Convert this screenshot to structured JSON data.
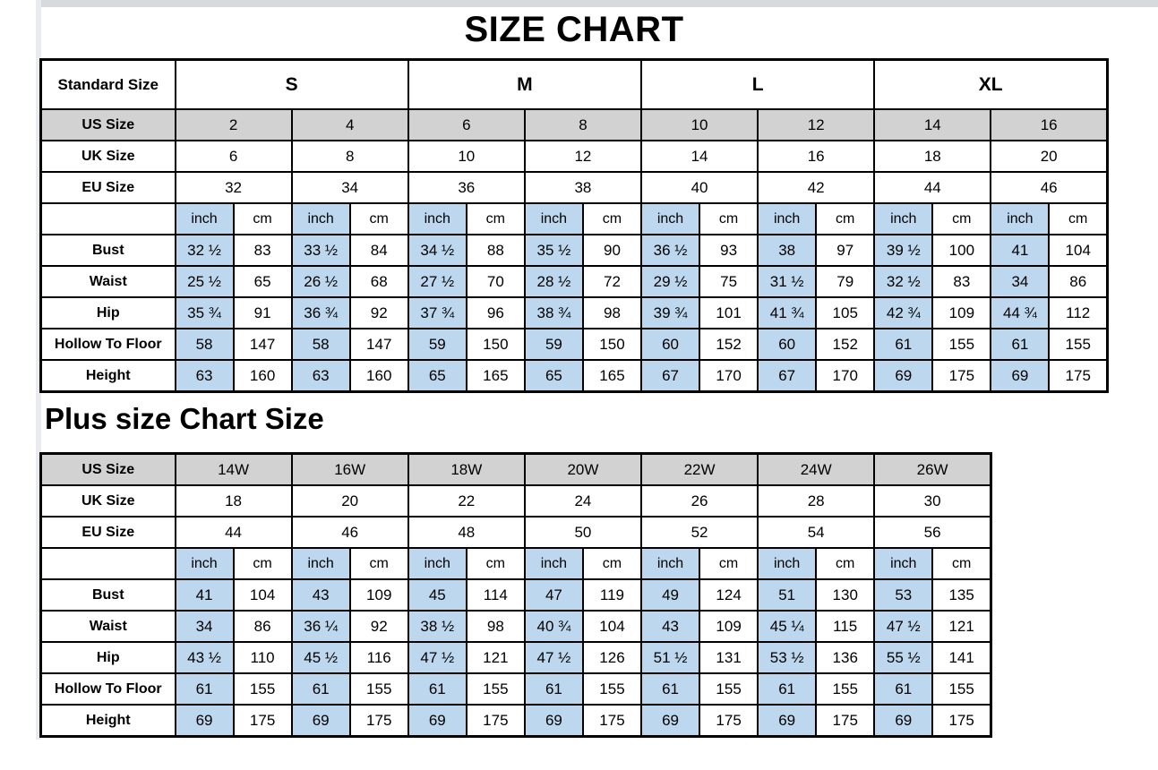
{
  "colors": {
    "inch_highlight_blue": "#bdd7ee",
    "size_row_gray": "#d2d2d2",
    "border_black": "#000000",
    "page_background": "#ffffff"
  },
  "chart_data": [
    {
      "type": "table",
      "title": "SIZE CHART",
      "corner_label": "Standard Size",
      "size_groups": [
        "S",
        "M",
        "L",
        "XL"
      ],
      "size_rows": [
        {
          "label": "US Size",
          "gray": true,
          "values": [
            "2",
            "4",
            "6",
            "8",
            "10",
            "12",
            "14",
            "16"
          ]
        },
        {
          "label": "UK Size",
          "gray": false,
          "values": [
            "6",
            "8",
            "10",
            "12",
            "14",
            "16",
            "18",
            "20"
          ]
        },
        {
          "label": "EU Size",
          "gray": false,
          "values": [
            "32",
            "34",
            "36",
            "38",
            "40",
            "42",
            "44",
            "46"
          ]
        }
      ],
      "units": [
        "inch",
        "cm"
      ],
      "measure_rows": [
        {
          "label": "Bust",
          "cells": [
            "32 ½",
            "83",
            "33 ½",
            "84",
            "34 ½",
            "88",
            "35 ½",
            "90",
            "36 ½",
            "93",
            "38",
            "97",
            "39 ½",
            "100",
            "41",
            "104"
          ]
        },
        {
          "label": "Waist",
          "cells": [
            "25 ½",
            "65",
            "26 ½",
            "68",
            "27 ½",
            "70",
            "28 ½",
            "72",
            "29 ½",
            "75",
            "31 ½",
            "79",
            "32 ½",
            "83",
            "34",
            "86"
          ]
        },
        {
          "label": "Hip",
          "cells": [
            "35 ¾",
            "91",
            "36 ¾",
            "92",
            "37 ¾",
            "96",
            "38 ¾",
            "98",
            "39 ¾",
            "101",
            "41 ¾",
            "105",
            "42 ¾",
            "109",
            "44 ¾",
            "112"
          ]
        },
        {
          "label": "Hollow To Floor",
          "cells": [
            "58",
            "147",
            "58",
            "147",
            "59",
            "150",
            "59",
            "150",
            "60",
            "152",
            "60",
            "152",
            "61",
            "155",
            "61",
            "155"
          ]
        },
        {
          "label": "Height",
          "cells": [
            "63",
            "160",
            "63",
            "160",
            "65",
            "165",
            "65",
            "165",
            "67",
            "170",
            "67",
            "170",
            "69",
            "175",
            "69",
            "175"
          ]
        }
      ]
    },
    {
      "type": "table",
      "title": "Plus size Chart Size",
      "size_rows": [
        {
          "label": "US Size",
          "gray": true,
          "values": [
            "14W",
            "16W",
            "18W",
            "20W",
            "22W",
            "24W",
            "26W"
          ]
        },
        {
          "label": "UK Size",
          "gray": false,
          "values": [
            "18",
            "20",
            "22",
            "24",
            "26",
            "28",
            "30"
          ]
        },
        {
          "label": "EU Size",
          "gray": false,
          "values": [
            "44",
            "46",
            "48",
            "50",
            "52",
            "54",
            "56"
          ]
        }
      ],
      "units": [
        "inch",
        "cm"
      ],
      "measure_rows": [
        {
          "label": "Bust",
          "cells": [
            "41",
            "104",
            "43",
            "109",
            "45",
            "114",
            "47",
            "119",
            "49",
            "124",
            "51",
            "130",
            "53",
            "135"
          ]
        },
        {
          "label": "Waist",
          "cells": [
            "34",
            "86",
            "36 ¼",
            "92",
            "38 ½",
            "98",
            "40 ¾",
            "104",
            "43",
            "109",
            "45 ¼",
            "115",
            "47 ½",
            "121"
          ]
        },
        {
          "label": "Hip",
          "cells": [
            "43 ½",
            "110",
            "45 ½",
            "116",
            "47 ½",
            "121",
            "47 ½",
            "126",
            "51 ½",
            "131",
            "53 ½",
            "136",
            "55 ½",
            "141"
          ]
        },
        {
          "label": "Hollow To Floor",
          "cells": [
            "61",
            "155",
            "61",
            "155",
            "61",
            "155",
            "61",
            "155",
            "61",
            "155",
            "61",
            "155",
            "61",
            "155"
          ]
        },
        {
          "label": "Height",
          "cells": [
            "69",
            "175",
            "69",
            "175",
            "69",
            "175",
            "69",
            "175",
            "69",
            "175",
            "69",
            "175",
            "69",
            "175"
          ]
        }
      ]
    }
  ]
}
